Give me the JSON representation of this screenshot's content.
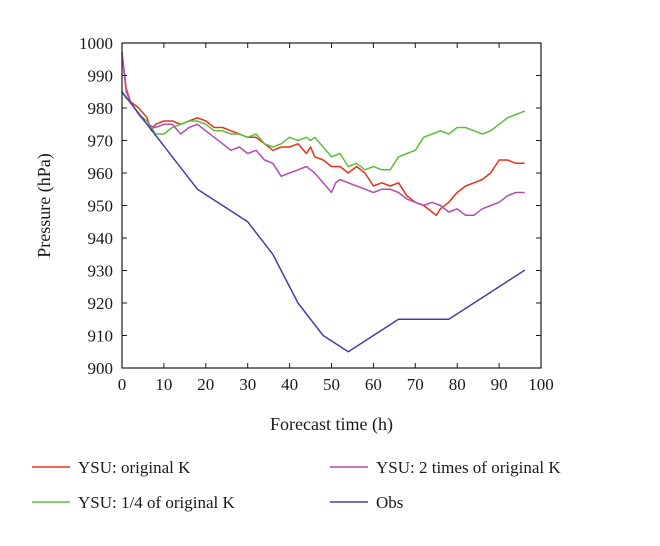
{
  "chart_data": {
    "type": "line",
    "xlabel": "Forecast time (h)",
    "ylabel": "Pressure (hPa)",
    "xlim": [
      0,
      100
    ],
    "ylim": [
      900,
      1000
    ],
    "xticks": [
      0,
      10,
      20,
      30,
      40,
      50,
      60,
      70,
      80,
      90,
      100
    ],
    "yticks": [
      900,
      910,
      920,
      930,
      940,
      950,
      960,
      970,
      980,
      990,
      1000
    ],
    "grid": false,
    "legend_position": "bottom",
    "series": [
      {
        "name": "YSU: original K",
        "color": "#e8321c",
        "points": [
          [
            0,
            997
          ],
          [
            1,
            986
          ],
          [
            2,
            982
          ],
          [
            4,
            980
          ],
          [
            6,
            977
          ],
          [
            7,
            973
          ],
          [
            8,
            975
          ],
          [
            10,
            976
          ],
          [
            12,
            976
          ],
          [
            14,
            975
          ],
          [
            16,
            976
          ],
          [
            18,
            977
          ],
          [
            20,
            976
          ],
          [
            22,
            974
          ],
          [
            24,
            974
          ],
          [
            26,
            973
          ],
          [
            28,
            972
          ],
          [
            30,
            971
          ],
          [
            32,
            971
          ],
          [
            34,
            969
          ],
          [
            36,
            967
          ],
          [
            38,
            968
          ],
          [
            40,
            968
          ],
          [
            42,
            969
          ],
          [
            44,
            966
          ],
          [
            45,
            968
          ],
          [
            46,
            965
          ],
          [
            48,
            964
          ],
          [
            50,
            962
          ],
          [
            52,
            962
          ],
          [
            54,
            960
          ],
          [
            56,
            962
          ],
          [
            58,
            960
          ],
          [
            60,
            956
          ],
          [
            62,
            957
          ],
          [
            64,
            956
          ],
          [
            66,
            957
          ],
          [
            68,
            953
          ],
          [
            70,
            951
          ],
          [
            72,
            950
          ],
          [
            74,
            948
          ],
          [
            75,
            947
          ],
          [
            76,
            949
          ],
          [
            78,
            951
          ],
          [
            80,
            954
          ],
          [
            82,
            956
          ],
          [
            84,
            957
          ],
          [
            86,
            958
          ],
          [
            88,
            960
          ],
          [
            90,
            964
          ],
          [
            92,
            964
          ],
          [
            94,
            963
          ],
          [
            96,
            963
          ]
        ]
      },
      {
        "name": "YSU: 1/4 of original K",
        "color": "#5cbf3a",
        "points": [
          [
            0,
            985
          ],
          [
            1,
            983
          ],
          [
            2,
            982
          ],
          [
            4,
            978
          ],
          [
            6,
            976
          ],
          [
            8,
            972
          ],
          [
            10,
            972
          ],
          [
            12,
            974
          ],
          [
            14,
            975
          ],
          [
            16,
            976
          ],
          [
            18,
            976
          ],
          [
            20,
            975
          ],
          [
            22,
            973
          ],
          [
            24,
            973
          ],
          [
            26,
            972
          ],
          [
            28,
            972
          ],
          [
            30,
            971
          ],
          [
            32,
            972
          ],
          [
            34,
            969
          ],
          [
            36,
            968
          ],
          [
            38,
            969
          ],
          [
            40,
            971
          ],
          [
            42,
            970
          ],
          [
            44,
            971
          ],
          [
            45,
            970
          ],
          [
            46,
            971
          ],
          [
            48,
            968
          ],
          [
            50,
            965
          ],
          [
            52,
            966
          ],
          [
            54,
            962
          ],
          [
            56,
            963
          ],
          [
            58,
            961
          ],
          [
            60,
            962
          ],
          [
            62,
            961
          ],
          [
            64,
            961
          ],
          [
            66,
            965
          ],
          [
            68,
            966
          ],
          [
            70,
            967
          ],
          [
            72,
            971
          ],
          [
            74,
            972
          ],
          [
            76,
            973
          ],
          [
            78,
            972
          ],
          [
            80,
            974
          ],
          [
            82,
            974
          ],
          [
            84,
            973
          ],
          [
            86,
            972
          ],
          [
            88,
            973
          ],
          [
            90,
            975
          ],
          [
            92,
            977
          ],
          [
            94,
            978
          ],
          [
            96,
            979
          ]
        ]
      },
      {
        "name": "YSU: 2 times of original K",
        "color": "#b04fb0",
        "points": [
          [
            0,
            997
          ],
          [
            1,
            985
          ],
          [
            2,
            982
          ],
          [
            4,
            978
          ],
          [
            6,
            975
          ],
          [
            8,
            974
          ],
          [
            10,
            975
          ],
          [
            12,
            975
          ],
          [
            14,
            972
          ],
          [
            16,
            974
          ],
          [
            18,
            975
          ],
          [
            20,
            973
          ],
          [
            22,
            971
          ],
          [
            24,
            969
          ],
          [
            26,
            967
          ],
          [
            28,
            968
          ],
          [
            30,
            966
          ],
          [
            32,
            967
          ],
          [
            34,
            964
          ],
          [
            36,
            963
          ],
          [
            38,
            959
          ],
          [
            40,
            960
          ],
          [
            42,
            961
          ],
          [
            44,
            962
          ],
          [
            45,
            961
          ],
          [
            46,
            960
          ],
          [
            48,
            957
          ],
          [
            50,
            954
          ],
          [
            51,
            957
          ],
          [
            52,
            958
          ],
          [
            54,
            957
          ],
          [
            56,
            956
          ],
          [
            58,
            955
          ],
          [
            60,
            954
          ],
          [
            62,
            955
          ],
          [
            64,
            955
          ],
          [
            66,
            954
          ],
          [
            68,
            952
          ],
          [
            70,
            951
          ],
          [
            72,
            950
          ],
          [
            74,
            951
          ],
          [
            76,
            950
          ],
          [
            78,
            948
          ],
          [
            80,
            949
          ],
          [
            82,
            947
          ],
          [
            84,
            947
          ],
          [
            86,
            949
          ],
          [
            88,
            950
          ],
          [
            90,
            951
          ],
          [
            92,
            953
          ],
          [
            94,
            954
          ],
          [
            96,
            954
          ]
        ]
      },
      {
        "name": "Obs",
        "color": "#4040a8",
        "points": [
          [
            0,
            985
          ],
          [
            6,
            975
          ],
          [
            12,
            965
          ],
          [
            18,
            955
          ],
          [
            24,
            950
          ],
          [
            30,
            945
          ],
          [
            36,
            935
          ],
          [
            42,
            920
          ],
          [
            48,
            910
          ],
          [
            54,
            905
          ],
          [
            60,
            910
          ],
          [
            66,
            915
          ],
          [
            72,
            915
          ],
          [
            78,
            915
          ],
          [
            84,
            920
          ],
          [
            90,
            925
          ],
          [
            96,
            930
          ]
        ]
      }
    ]
  }
}
